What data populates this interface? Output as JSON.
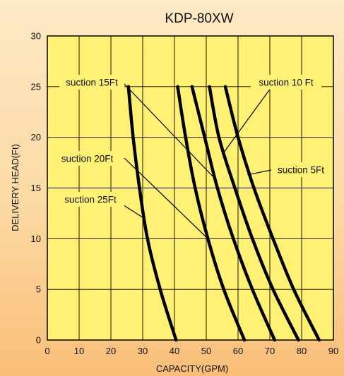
{
  "chart_data": {
    "type": "line",
    "title": "KDP-80XW",
    "xlabel": "CAPACITY(GPM)",
    "ylabel": "DELIVERY HEAD(Ft)",
    "xlim": [
      0,
      90
    ],
    "ylim": [
      0,
      30
    ],
    "xticks": [
      0,
      10,
      20,
      30,
      40,
      50,
      60,
      70,
      80,
      90
    ],
    "yticks": [
      0,
      5,
      10,
      15,
      20,
      25,
      30
    ],
    "grid": true,
    "colors": {
      "plot_background": "#fef173",
      "line": "#000000",
      "page_background": "#fcd9a2"
    },
    "series": [
      {
        "name": "suction 5Ft",
        "points": [
          [
            56,
            25
          ],
          [
            60,
            20
          ],
          [
            65,
            15
          ],
          [
            71,
            10
          ],
          [
            77.5,
            5
          ],
          [
            85.5,
            0
          ]
        ]
      },
      {
        "name": "suction 10 Ft",
        "points": [
          [
            51,
            25
          ],
          [
            54,
            20
          ],
          [
            59,
            15
          ],
          [
            64.5,
            10
          ],
          [
            71,
            5
          ],
          [
            79,
            0
          ]
        ]
      },
      {
        "name": "suction 15Ft",
        "points": [
          [
            45.5,
            25
          ],
          [
            49.5,
            20
          ],
          [
            53.5,
            15
          ],
          [
            58.5,
            10
          ],
          [
            64.5,
            5
          ],
          [
            71.5,
            0
          ]
        ]
      },
      {
        "name": "suction 20Ft",
        "points": [
          [
            41,
            25
          ],
          [
            43.5,
            20
          ],
          [
            46.5,
            15
          ],
          [
            50.5,
            10
          ],
          [
            55.5,
            5
          ],
          [
            62,
            0
          ]
        ]
      },
      {
        "name": "suction 25Ft",
        "points": [
          [
            25.5,
            25
          ],
          [
            27,
            20
          ],
          [
            29,
            15
          ],
          [
            31.5,
            10
          ],
          [
            35.5,
            5
          ],
          [
            40.5,
            0
          ]
        ]
      }
    ],
    "annotations": [
      {
        "text": "suction 15Ft",
        "series": "suction 15Ft",
        "anchor": "left-middle",
        "target": [
          52.5,
          16
        ]
      },
      {
        "text": "suction 10 Ft",
        "series": "suction 10 Ft",
        "anchor": "right-upper",
        "target": [
          55.5,
          18.5
        ]
      },
      {
        "text": "suction 20Ft",
        "series": "suction 20Ft",
        "anchor": "left-middle",
        "target": [
          50.5,
          10
        ]
      },
      {
        "text": "suction 5Ft",
        "series": "suction 5Ft",
        "anchor": "right-middle",
        "target": [
          63,
          16.3
        ]
      },
      {
        "text": "suction 25Ft",
        "series": "suction 25Ft",
        "anchor": "left-lower",
        "target": [
          30.5,
          12
        ]
      }
    ]
  }
}
